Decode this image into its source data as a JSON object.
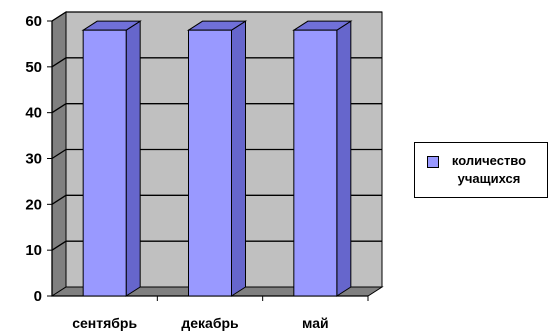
{
  "chart_data": {
    "type": "bar",
    "style": "3d-column",
    "categories": [
      "сентябрь",
      "декабрь",
      "май"
    ],
    "series": [
      {
        "name": "количество учащихся",
        "values": [
          58,
          58,
          58
        ],
        "color": "#9999ff"
      }
    ],
    "ylim": [
      0,
      60
    ],
    "yticks": [
      0,
      10,
      20,
      30,
      40,
      50,
      60
    ],
    "grid": true,
    "legend": "right",
    "title": "",
    "xlabel": "",
    "ylabel": "",
    "colors": {
      "bar_front": "#9999ff",
      "bar_side": "#6666cc",
      "bar_top": "#7070d8",
      "wall": "#c0c0c0",
      "floor": "#808080"
    }
  }
}
